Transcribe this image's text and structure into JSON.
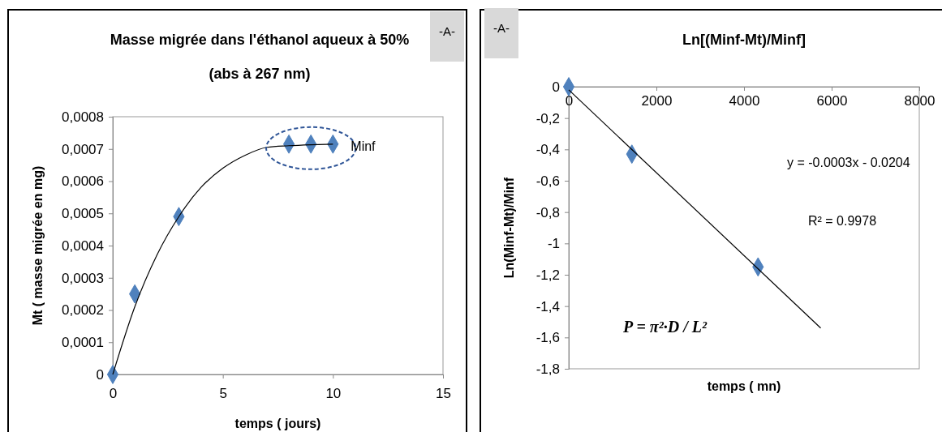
{
  "chart_data": [
    {
      "type": "scatter",
      "title": "Masse migrée dans l'éthanol aqueux à 50%",
      "subtitle": "(abs à 267 nm)",
      "xlabel": "temps ( jours)",
      "ylabel": "Mt ( masse migrée en mg)",
      "xlim": [
        0,
        15
      ],
      "xticks": [
        0,
        5,
        10,
        15
      ],
      "ylim": [
        0,
        0.0008
      ],
      "yticks": [
        {
          "value": 0,
          "label": "0"
        },
        {
          "value": 0.0001,
          "label": "0,0001"
        },
        {
          "value": 0.0002,
          "label": "0,0002"
        },
        {
          "value": 0.0003,
          "label": "0,0003"
        },
        {
          "value": 0.0004,
          "label": "0,0004"
        },
        {
          "value": 0.0005,
          "label": "0,0005"
        },
        {
          "value": 0.0006,
          "label": "0,0006"
        },
        {
          "value": 0.0007,
          "label": "0,0007"
        },
        {
          "value": 0.0008,
          "label": "0,0008"
        }
      ],
      "series": [
        {
          "marker": "diamond",
          "color": "#4f81bd",
          "x": [
            0,
            1,
            3,
            8,
            9,
            10
          ],
          "values": [
            0,
            0.00025,
            0.00049,
            0.000715,
            0.000715,
            0.000715
          ]
        },
        {
          "type": "line",
          "marker": "none",
          "color": "#000000",
          "x": [
            0,
            1,
            2,
            3,
            4,
            5,
            6,
            7,
            8,
            9,
            10
          ],
          "values": [
            0,
            0.00021,
            0.00037,
            0.00049,
            0.00058,
            0.00064,
            0.00068,
            0.000705,
            0.00071,
            0.000713,
            0.000715
          ]
        }
      ],
      "annotations": [
        "-A-",
        {
          "text": "Minf",
          "x": 10,
          "y": 0.000715
        }
      ]
    },
    {
      "type": "scatter",
      "title": "Ln[(Minf-Mt)/Minf]",
      "xlabel": "temps ( mn)",
      "ylabel": "Ln(Minf-Mt)/Minf",
      "xlim": [
        0,
        8000
      ],
      "xticks": [
        0,
        2000,
        4000,
        6000,
        8000
      ],
      "ylim": [
        -1.8,
        0
      ],
      "yticks": [
        {
          "value": 0,
          "label": "0"
        },
        {
          "value": -0.2,
          "label": "-0,2"
        },
        {
          "value": -0.4,
          "label": "-0,4"
        },
        {
          "value": -0.6,
          "label": "-0,6"
        },
        {
          "value": -0.8,
          "label": "-0,8"
        },
        {
          "value": -1,
          "label": "-1"
        },
        {
          "value": -1.2,
          "label": "-1,2"
        },
        {
          "value": -1.4,
          "label": "-1,4"
        },
        {
          "value": -1.6,
          "label": "-1,6"
        },
        {
          "value": -1.8,
          "label": "-1,8"
        }
      ],
      "series": [
        {
          "marker": "diamond",
          "color": "#4f81bd",
          "x": [
            0,
            1440,
            4320
          ],
          "values": [
            0,
            -0.43,
            -1.15
          ]
        },
        {
          "type": "line",
          "marker": "none",
          "color": "#000000",
          "x": [
            0,
            5750
          ],
          "values": [
            -0.02,
            -1.54
          ]
        }
      ],
      "annotations": [
        "-A-",
        "y = -0.0003x - 0.0204",
        "R² = 0.9978",
        "P = π²·D / L²"
      ]
    }
  ]
}
